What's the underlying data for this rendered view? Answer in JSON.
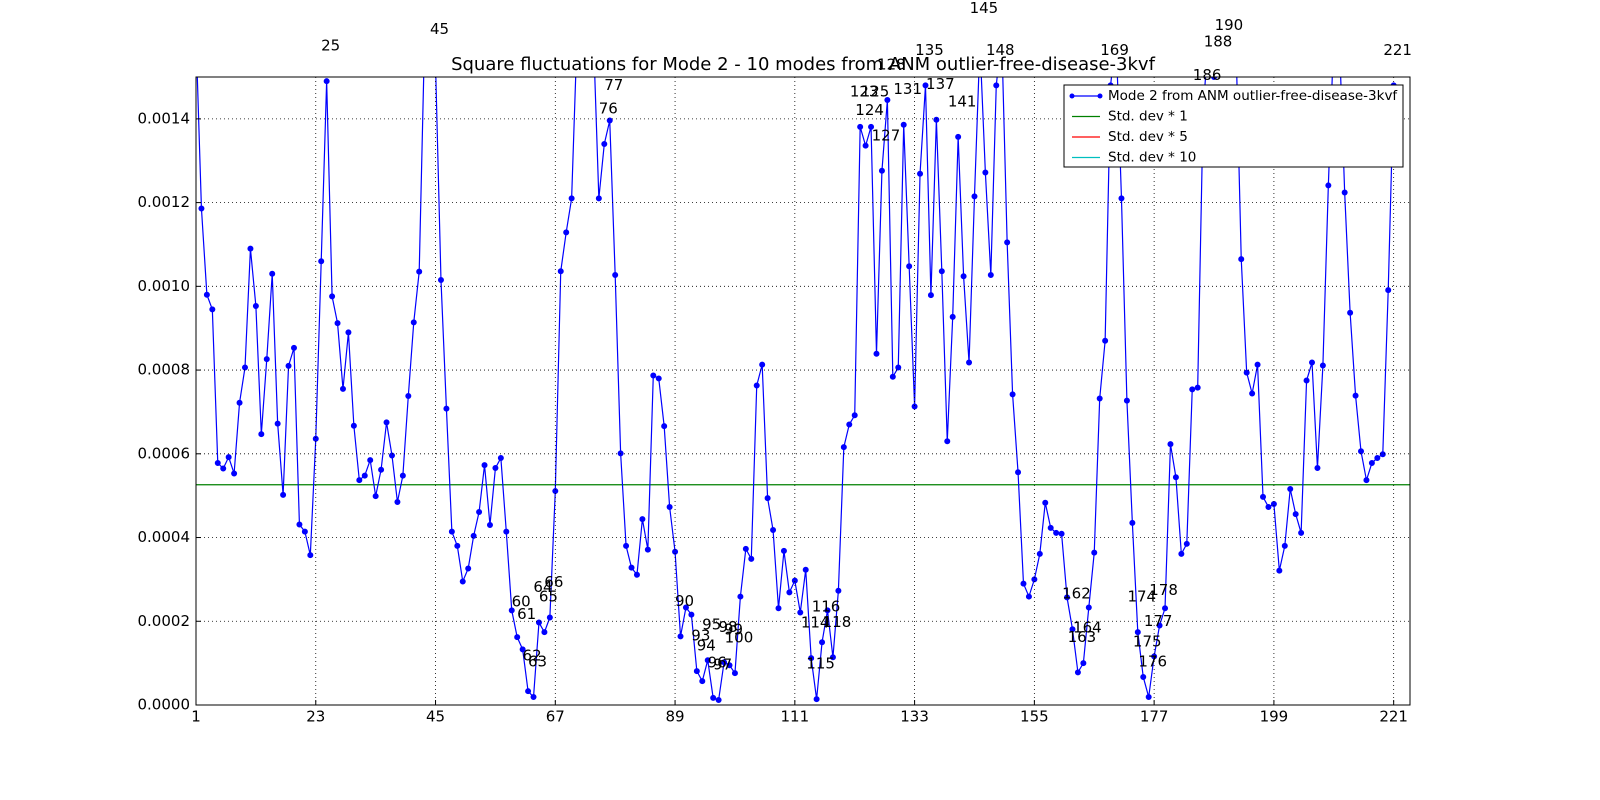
{
  "chart_data": {
    "type": "line",
    "title": "Square fluctuations for Mode 2 - 10 modes from ANM outlier-free-disease-3kvf",
    "xlim": [
      1,
      224
    ],
    "ylim": [
      0,
      0.0015
    ],
    "xticks": [
      1,
      23,
      45,
      67,
      89,
      111,
      133,
      155,
      177,
      199,
      221
    ],
    "yticks": [
      {
        "value": 0,
        "label": "0.0000"
      },
      {
        "value": 0.0002,
        "label": "0.0002"
      },
      {
        "value": 0.0004,
        "label": "0.0004"
      },
      {
        "value": 0.0006,
        "label": "0.0006"
      },
      {
        "value": 0.0008,
        "label": "0.0008"
      },
      {
        "value": 0.001,
        "label": "0.0010"
      },
      {
        "value": 0.0012,
        "label": "0.0012"
      },
      {
        "value": 0.0014,
        "label": "0.0014"
      }
    ],
    "grid": true,
    "legend": "upper right",
    "series": [
      {
        "name": "Mode 2 from ANM outlier-free-disease-3kvf",
        "color": "#0000ff",
        "x": [
          1,
          2,
          3,
          4,
          5,
          6,
          7,
          8,
          9,
          10,
          11,
          12,
          13,
          14,
          15,
          16,
          17,
          18,
          19,
          20,
          21,
          22,
          23,
          24,
          25,
          26,
          27,
          28,
          29,
          30,
          31,
          32,
          33,
          34,
          35,
          36,
          37,
          38,
          39,
          40,
          41,
          42,
          43,
          44,
          45,
          46,
          47,
          48,
          49,
          50,
          51,
          52,
          53,
          54,
          55,
          56,
          57,
          58,
          59,
          60,
          61,
          62,
          63,
          64,
          65,
          66,
          67,
          68,
          69,
          70,
          71,
          72,
          73,
          74,
          75,
          76,
          77,
          78,
          79,
          80,
          81,
          82,
          83,
          84,
          85,
          86,
          87,
          88,
          89,
          90,
          91,
          92,
          93,
          94,
          95,
          96,
          97,
          98,
          99,
          100,
          101,
          102,
          103,
          104,
          105,
          106,
          107,
          108,
          109,
          110,
          111,
          112,
          113,
          114,
          115,
          116,
          117,
          118,
          119,
          120,
          121,
          122,
          123,
          124,
          125,
          126,
          127,
          128,
          129,
          130,
          131,
          132,
          133,
          134,
          135,
          136,
          137,
          138,
          139,
          140,
          141,
          142,
          143,
          144,
          145,
          146,
          147,
          148,
          149,
          150,
          151,
          152,
          153,
          154,
          155,
          156,
          157,
          158,
          159,
          160,
          161,
          162,
          163,
          164,
          165,
          166,
          167,
          168,
          169,
          170,
          171,
          172,
          173,
          174,
          175,
          176,
          177,
          178,
          179,
          180,
          181,
          182,
          183,
          184,
          185,
          186,
          187,
          188,
          189,
          190,
          191,
          192,
          193,
          194,
          195,
          196,
          197,
          198,
          199,
          200,
          201,
          202,
          203,
          204,
          205,
          206,
          207,
          208,
          209,
          210,
          211,
          212,
          213,
          214,
          215,
          216,
          217,
          218,
          219,
          220,
          221
        ],
        "values": [
          0.0016,
          0.001186,
          0.00098,
          0.000945,
          0.000578,
          0.000565,
          0.000592,
          0.000553,
          0.000722,
          0.000806,
          0.00109,
          0.000953,
          0.000647,
          0.000826,
          0.00103,
          0.000672,
          0.000502,
          0.00081,
          0.000853,
          0.000431,
          0.000414,
          0.000358,
          0.000636,
          0.00106,
          0.00149,
          0.000976,
          0.000912,
          0.000755,
          0.00089,
          0.000667,
          0.000537,
          0.000548,
          0.000585,
          0.000499,
          0.000562,
          0.000675,
          0.000596,
          0.000485,
          0.000548,
          0.000738,
          0.000914,
          0.001035,
          0.0016,
          0.0017,
          0.00153,
          0.001015,
          0.000708,
          0.000414,
          0.00038,
          0.000295,
          0.000326,
          0.000404,
          0.000461,
          0.000573,
          0.00043,
          0.000566,
          0.00059,
          0.000414,
          0.000226,
          0.000162,
          0.000133,
          3.3e-05,
          1.9e-05,
          0.000197,
          0.000174,
          0.000209,
          0.000511,
          0.001036,
          0.001129,
          0.00121,
          0.0016,
          0.0017,
          0.0016,
          0.0016,
          0.00121,
          0.00134,
          0.001396,
          0.001027,
          0.000601,
          0.00038,
          0.000328,
          0.000311,
          0.000444,
          0.000371,
          0.000787,
          0.00078,
          0.000666,
          0.000473,
          0.000366,
          0.000164,
          0.000233,
          0.000216,
          8.1e-05,
          5.7e-05,
          0.000107,
          1.7e-05,
          1.2e-05,
          0.000102,
          9.5e-05,
          7.6e-05,
          0.000259,
          0.000373,
          0.000349,
          0.000763,
          0.000813,
          0.000494,
          0.000418,
          0.000231,
          0.000368,
          0.000269,
          0.000297,
          0.000221,
          0.000323,
          0.000112,
          1.4e-05,
          0.00015,
          0.000226,
          0.000114,
          0.000273,
          0.000616,
          0.00067,
          0.000692,
          0.001381,
          0.001336,
          0.001381,
          0.000839,
          0.001276,
          0.001445,
          0.000784,
          0.000806,
          0.001386,
          0.001048,
          0.000713,
          0.001269,
          0.00148,
          0.000979,
          0.001398,
          0.001036,
          0.00063,
          0.000927,
          0.001357,
          0.001024,
          0.000818,
          0.001215,
          0.00158,
          0.001272,
          0.001027,
          0.00148,
          0.0016,
          0.001105,
          0.000742,
          0.000556,
          0.00029,
          0.000259,
          0.0003,
          0.000361,
          0.000483,
          0.000423,
          0.000411,
          0.000409,
          0.000257,
          0.000181,
          7.8e-05,
          0.0001,
          0.000233,
          0.000364,
          0.000732,
          0.00087,
          0.00148,
          0.0016,
          0.00121,
          0.000727,
          0.000435,
          0.000174,
          6.7e-05,
          1.9e-05,
          0.000116,
          0.00019,
          0.000231,
          0.000623,
          0.000544,
          0.000361,
          0.000385,
          0.000754,
          0.000758,
          0.00142,
          0.0016,
          0.0015,
          0.0016,
          0.00154,
          0.0016,
          0.0016,
          0.001065,
          0.000794,
          0.000744,
          0.000813,
          0.000497,
          0.000473,
          0.00048,
          0.000321,
          0.00038,
          0.000516,
          0.000456,
          0.000411,
          0.000775,
          0.000818,
          0.000566,
          0.000811,
          0.001241,
          0.0016,
          0.0016,
          0.001224,
          0.000937,
          0.000739,
          0.000606,
          0.000537,
          0.000578,
          0.00059,
          0.000599,
          0.000991,
          0.00148
        ]
      }
    ],
    "hlines": [
      {
        "name": "Std. dev * 1",
        "color": "#008000",
        "value": 0.000526
      },
      {
        "name": "Std. dev * 5",
        "color": "#ff0000"
      },
      {
        "name": "Std. dev * 10",
        "color": "#00bfbf"
      }
    ],
    "annotations": [
      25,
      45,
      60,
      61,
      62,
      63,
      64,
      65,
      66,
      76,
      77,
      90,
      93,
      94,
      95,
      96,
      97,
      98,
      99,
      100,
      114,
      115,
      116,
      118,
      123,
      124,
      125,
      127,
      128,
      131,
      135,
      137,
      141,
      145,
      148,
      162,
      163,
      164,
      169,
      174,
      175,
      176,
      177,
      178,
      186,
      188,
      190,
      221
    ]
  }
}
